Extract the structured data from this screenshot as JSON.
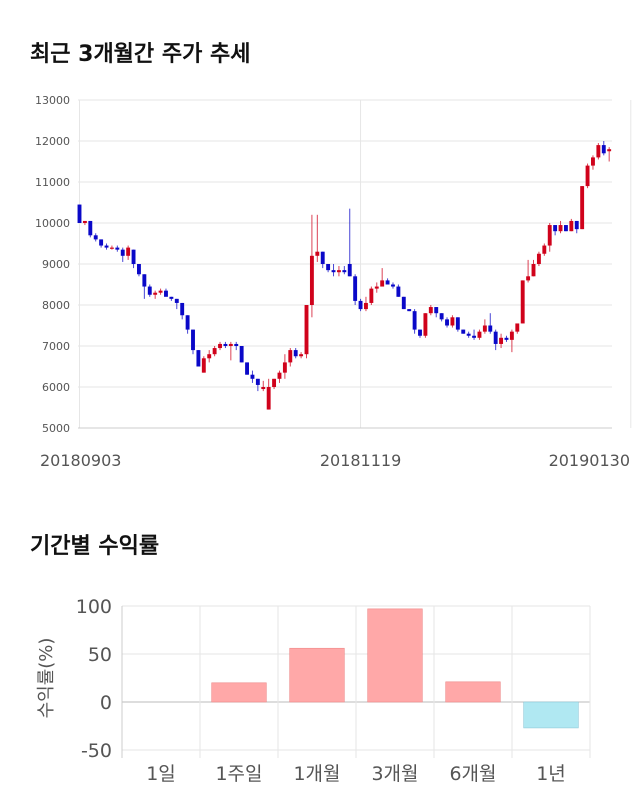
{
  "sections": {
    "price_title": "최근 3개월간 주가 추세",
    "return_title": "기간별 수익률"
  },
  "colors": {
    "up": "#d0021b",
    "down": "#0a08c8",
    "bar_positive": "#ffa8a8",
    "bar_negative": "#b0e8f2",
    "grid": "#e6e6e6"
  },
  "chart_data": [
    {
      "type": "candlestick",
      "title": "최근 3개월간 주가 추세",
      "ylim": [
        5000,
        13000
      ],
      "y_ticks": [
        "13000",
        "12000",
        "11000",
        "10000",
        "9000",
        "8000",
        "7000",
        "6000",
        "5000"
      ],
      "x_tick_labels": [
        {
          "index": 0,
          "label": "20180903"
        },
        {
          "index": 52,
          "label": "20181119"
        },
        {
          "index": 102,
          "label": "20190130"
        }
      ],
      "grid": true,
      "candles": [
        [
          10450,
          10450,
          10000,
          10000
        ],
        [
          10000,
          10050,
          9950,
          10050
        ],
        [
          10050,
          10050,
          9650,
          9700
        ],
        [
          9700,
          9750,
          9550,
          9600
        ],
        [
          9600,
          9600,
          9400,
          9450
        ],
        [
          9450,
          9500,
          9350,
          9400
        ],
        [
          9400,
          9450,
          9350,
          9400
        ],
        [
          9400,
          9450,
          9300,
          9350
        ],
        [
          9350,
          9400,
          9050,
          9200
        ],
        [
          9200,
          9450,
          9100,
          9400
        ],
        [
          9350,
          9350,
          8900,
          9000
        ],
        [
          9000,
          9000,
          8700,
          8750
        ],
        [
          8750,
          8750,
          8150,
          8450
        ],
        [
          8450,
          8500,
          8200,
          8250
        ],
        [
          8250,
          8350,
          8150,
          8300
        ],
        [
          8300,
          8400,
          8250,
          8350
        ],
        [
          8350,
          8400,
          8250,
          8200
        ],
        [
          8200,
          8200,
          8100,
          8150
        ],
        [
          8150,
          8150,
          7900,
          8050
        ],
        [
          8050,
          8050,
          7650,
          7750
        ],
        [
          7750,
          7750,
          7300,
          7400
        ],
        [
          7400,
          7400,
          6800,
          6900
        ],
        [
          6900,
          6900,
          6500,
          6500
        ],
        [
          6350,
          6750,
          6350,
          6700
        ],
        [
          6700,
          6900,
          6600,
          6800
        ],
        [
          6800,
          7000,
          6750,
          6950
        ],
        [
          6950,
          7100,
          6900,
          7050
        ],
        [
          7050,
          7100,
          6950,
          7000
        ],
        [
          7000,
          7100,
          6650,
          7050
        ],
        [
          7050,
          7100,
          6900,
          7000
        ],
        [
          7000,
          7000,
          6600,
          6600
        ],
        [
          6600,
          6600,
          6300,
          6300
        ],
        [
          6300,
          6400,
          6100,
          6200
        ],
        [
          6200,
          6200,
          5900,
          6050
        ],
        [
          5950,
          6150,
          5900,
          6000
        ],
        [
          5450,
          6200,
          5450,
          6000
        ],
        [
          6000,
          6200,
          5950,
          6200
        ],
        [
          6200,
          6400,
          6100,
          6350
        ],
        [
          6350,
          6800,
          6200,
          6600
        ],
        [
          6600,
          6950,
          6500,
          6900
        ],
        [
          6900,
          6950,
          6700,
          6750
        ],
        [
          6750,
          6850,
          6700,
          6800
        ],
        [
          6800,
          8000,
          6700,
          8000
        ],
        [
          8000,
          10200,
          7700,
          9200
        ],
        [
          9200,
          10200,
          9050,
          9300
        ],
        [
          9300,
          9300,
          8900,
          9000
        ],
        [
          9000,
          9000,
          8800,
          8850
        ],
        [
          8850,
          9000,
          8700,
          8800
        ],
        [
          8800,
          8950,
          8700,
          8850
        ],
        [
          8850,
          8950,
          8750,
          8800
        ],
        [
          9000,
          10350,
          8700,
          8700
        ],
        [
          8700,
          8750,
          8000,
          8100
        ],
        [
          8100,
          8150,
          7850,
          7900
        ],
        [
          7900,
          8200,
          7850,
          8050
        ],
        [
          8050,
          8450,
          8000,
          8400
        ],
        [
          8400,
          8550,
          8300,
          8450
        ],
        [
          8450,
          8900,
          8500,
          8600
        ],
        [
          8600,
          8650,
          8500,
          8500
        ],
        [
          8500,
          8550,
          8400,
          8450
        ],
        [
          8450,
          8500,
          8200,
          8200
        ],
        [
          8200,
          8200,
          7900,
          7900
        ],
        [
          7900,
          7900,
          7850,
          7850
        ],
        [
          7850,
          7900,
          7300,
          7400
        ],
        [
          7400,
          7400,
          7200,
          7250
        ],
        [
          7250,
          7800,
          7200,
          7800
        ],
        [
          7800,
          8000,
          7750,
          7950
        ],
        [
          7950,
          7950,
          7700,
          7800
        ],
        [
          7800,
          7800,
          7600,
          7650
        ],
        [
          7650,
          7700,
          7450,
          7500
        ],
        [
          7500,
          7750,
          7450,
          7700
        ],
        [
          7700,
          7700,
          7350,
          7400
        ],
        [
          7400,
          7400,
          7300,
          7300
        ],
        [
          7300,
          7350,
          7200,
          7250
        ],
        [
          7250,
          7400,
          7150,
          7200
        ],
        [
          7200,
          7400,
          7150,
          7350
        ],
        [
          7350,
          7650,
          7300,
          7500
        ],
        [
          7500,
          7800,
          7300,
          7350
        ],
        [
          7350,
          7400,
          6900,
          7050
        ],
        [
          7050,
          7300,
          6950,
          7200
        ],
        [
          7200,
          7250,
          7100,
          7150
        ],
        [
          7150,
          7400,
          6850,
          7350
        ],
        [
          7350,
          7500,
          7300,
          7550
        ],
        [
          7550,
          8600,
          7550,
          8600
        ],
        [
          8600,
          9100,
          8550,
          8700
        ],
        [
          8700,
          9100,
          8700,
          9000
        ],
        [
          9000,
          9300,
          8950,
          9250
        ],
        [
          9250,
          9500,
          9200,
          9450
        ],
        [
          9450,
          10000,
          9300,
          9950
        ],
        [
          9950,
          9950,
          9700,
          9800
        ],
        [
          9800,
          10050,
          9750,
          9950
        ],
        [
          9950,
          9950,
          9800,
          9800
        ],
        [
          9800,
          10100,
          9800,
          10050
        ],
        [
          10050,
          10050,
          9750,
          9850
        ],
        [
          9850,
          10900,
          9850,
          10900
        ],
        [
          10900,
          11450,
          10850,
          11400
        ],
        [
          11400,
          11650,
          11300,
          11600
        ],
        [
          11600,
          11950,
          11550,
          11900
        ],
        [
          11900,
          12000,
          11650,
          11700
        ],
        [
          11750,
          11850,
          11500,
          11800
        ]
      ]
    },
    {
      "type": "bar",
      "title": "기간별 수익률",
      "ylabel": "수익률(%)",
      "ylim": [
        -50,
        100
      ],
      "y_ticks": [
        -50,
        0,
        50,
        100
      ],
      "categories": [
        "1일",
        "1주일",
        "1개월",
        "3개월",
        "6개월",
        "1년"
      ],
      "values": [
        0,
        20,
        56,
        97,
        21,
        -27
      ]
    }
  ]
}
